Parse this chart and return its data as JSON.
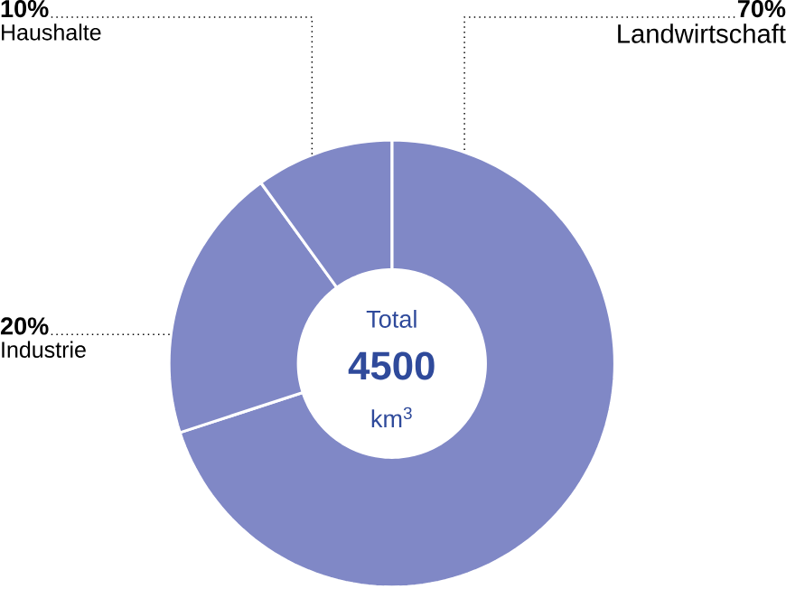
{
  "chart_data": {
    "type": "donut",
    "categories": [
      "Landwirtschaft",
      "Industrie",
      "Haushalte"
    ],
    "values": [
      70,
      20,
      10
    ],
    "value_labels": [
      "70%",
      "20%",
      "10%"
    ],
    "colors": [
      "#8088c6",
      "#8088c6",
      "#8088c6"
    ],
    "annotations": [
      "Total",
      "4500",
      "km$^{3}$"
    ]
  }
}
